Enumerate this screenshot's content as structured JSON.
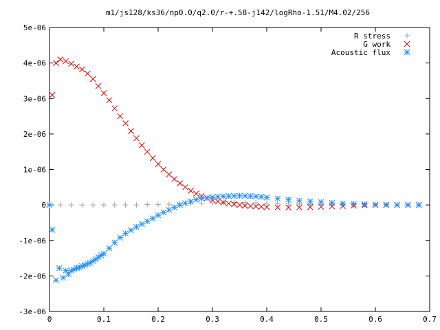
{
  "chart_data": {
    "type": "scatter",
    "title": "m1/js128/ks36/np0.0/q2.0/r-+.58-j142/logRho-1.51/M4.02/256",
    "xlabel": "",
    "ylabel": "",
    "xlim": [
      0,
      0.7
    ],
    "ylim": [
      -3e-06,
      5e-06
    ],
    "grid": false,
    "legend_position": "top-right",
    "x_ticks": [
      {
        "value": 0,
        "label": "0"
      },
      {
        "value": 0.1,
        "label": "0.1"
      },
      {
        "value": 0.2,
        "label": "0.2"
      },
      {
        "value": 0.3,
        "label": "0.3"
      },
      {
        "value": 0.4,
        "label": "0.4"
      },
      {
        "value": 0.5,
        "label": "0.5"
      },
      {
        "value": 0.6,
        "label": "0.6"
      },
      {
        "value": 0.7,
        "label": "0.7"
      }
    ],
    "y_ticks": [
      {
        "value": 5e-06,
        "label": "5e-06"
      },
      {
        "value": 4e-06,
        "label": "4e-06"
      },
      {
        "value": 3e-06,
        "label": "3e-06"
      },
      {
        "value": 2e-06,
        "label": "2e-06"
      },
      {
        "value": 1e-06,
        "label": "1e-06"
      },
      {
        "value": 0,
        "label": "0"
      },
      {
        "value": -1e-06,
        "label": "-1e-06"
      },
      {
        "value": -2e-06,
        "label": "-2e-06"
      },
      {
        "value": -3e-06,
        "label": "-3e-06"
      }
    ],
    "series": [
      {
        "name": "R stress",
        "marker": "plus",
        "color": "#a0a0a0",
        "x": [
          0.0,
          0.02,
          0.04,
          0.06,
          0.08,
          0.1,
          0.12,
          0.14,
          0.16,
          0.18,
          0.2,
          0.22,
          0.24,
          0.26,
          0.28,
          0.3,
          0.32,
          0.34,
          0.36,
          0.38,
          0.4,
          0.42,
          0.44,
          0.46,
          0.48,
          0.5,
          0.52,
          0.54,
          0.56,
          0.58,
          0.6,
          0.62,
          0.64,
          0.66,
          0.68
        ],
        "y": [
          0,
          0,
          0,
          0,
          0,
          0,
          0,
          0,
          0,
          1e-08,
          1.5e-08,
          2e-08,
          3e-08,
          4e-08,
          5e-08,
          6e-08,
          7e-08,
          7e-08,
          7e-08,
          6e-08,
          5e-08,
          4e-08,
          3e-08,
          2e-08,
          1.5e-08,
          1e-08,
          1e-08,
          1e-08,
          1e-08,
          1e-08,
          0,
          0,
          0,
          0,
          0
        ]
      },
      {
        "name": "G work",
        "marker": "cross",
        "color": "#e00000",
        "x": [
          0.005,
          0.012,
          0.02,
          0.03,
          0.04,
          0.05,
          0.06,
          0.07,
          0.08,
          0.09,
          0.1,
          0.11,
          0.12,
          0.13,
          0.14,
          0.15,
          0.16,
          0.17,
          0.18,
          0.19,
          0.2,
          0.21,
          0.22,
          0.23,
          0.24,
          0.25,
          0.26,
          0.27,
          0.28,
          0.29,
          0.3,
          0.31,
          0.32,
          0.33,
          0.34,
          0.35,
          0.36,
          0.37,
          0.38,
          0.39,
          0.4,
          0.42,
          0.44,
          0.46,
          0.48,
          0.5,
          0.52,
          0.54,
          0.56,
          0.58,
          0.6,
          0.62,
          0.64,
          0.66,
          0.68
        ],
        "y": [
          3.1e-06,
          4e-06,
          4.1e-06,
          4.05e-06,
          3.98e-06,
          3.9e-06,
          3.82e-06,
          3.7e-06,
          3.55e-06,
          3.35e-06,
          3.15e-06,
          2.95e-06,
          2.72e-06,
          2.5e-06,
          2.3e-06,
          2.08e-06,
          1.88e-06,
          1.68e-06,
          1.5e-06,
          1.32e-06,
          1.15e-06,
          1e-06,
          8.6e-07,
          7.3e-07,
          6.1e-07,
          5e-07,
          4e-07,
          3.2e-07,
          2.5e-07,
          1.9e-07,
          1.4e-07,
          1e-07,
          7e-08,
          4e-08,
          2e-08,
          0,
          -2e-08,
          -3e-08,
          -4e-08,
          -5e-08,
          -6e-08,
          -7e-08,
          -7e-08,
          -7e-08,
          -6e-08,
          -5e-08,
          -4e-08,
          -3e-08,
          -2e-08,
          -1e-08,
          0,
          0,
          0,
          0,
          0
        ]
      },
      {
        "name": "Acoustic flux",
        "marker": "star",
        "color": "#1e90ff",
        "x": [
          0.0,
          0.005,
          0.012,
          0.018,
          0.025,
          0.03,
          0.035,
          0.04,
          0.045,
          0.05,
          0.055,
          0.06,
          0.065,
          0.07,
          0.075,
          0.08,
          0.085,
          0.09,
          0.095,
          0.1,
          0.11,
          0.12,
          0.13,
          0.14,
          0.15,
          0.16,
          0.17,
          0.18,
          0.19,
          0.2,
          0.21,
          0.22,
          0.23,
          0.24,
          0.25,
          0.26,
          0.27,
          0.28,
          0.29,
          0.3,
          0.31,
          0.32,
          0.33,
          0.34,
          0.35,
          0.36,
          0.37,
          0.38,
          0.39,
          0.4,
          0.42,
          0.44,
          0.46,
          0.48,
          0.5,
          0.52,
          0.54,
          0.56,
          0.58,
          0.6,
          0.62,
          0.64,
          0.66,
          0.68
        ],
        "y": [
          0,
          -7e-07,
          -2.12e-06,
          -1.78e-06,
          -2.05e-06,
          -1.85e-06,
          -1.95e-06,
          -1.85e-06,
          -1.82e-06,
          -1.78e-06,
          -1.76e-06,
          -1.72e-06,
          -1.7e-06,
          -1.66e-06,
          -1.63e-06,
          -1.58e-06,
          -1.53e-06,
          -1.47e-06,
          -1.42e-06,
          -1.37e-06,
          -1.22e-06,
          -1.06e-06,
          -9.2e-07,
          -8e-07,
          -7.1e-07,
          -6.2e-07,
          -5.4e-07,
          -4.6e-07,
          -3.8e-07,
          -2.9e-07,
          -2.1e-07,
          -1.4e-07,
          -7e-08,
          0,
          5e-08,
          1e-07,
          1.5e-07,
          1.8e-07,
          2e-07,
          2.2e-07,
          2.3e-07,
          2.4e-07,
          2.5e-07,
          2.55e-07,
          2.6e-07,
          2.55e-07,
          2.5e-07,
          2.4e-07,
          2.3e-07,
          2.1e-07,
          1.8e-07,
          1.5e-07,
          1.2e-07,
          1e-07,
          8e-08,
          6e-08,
          4e-08,
          3e-08,
          2e-08,
          1e-08,
          1e-08,
          0,
          0,
          0
        ]
      }
    ]
  }
}
